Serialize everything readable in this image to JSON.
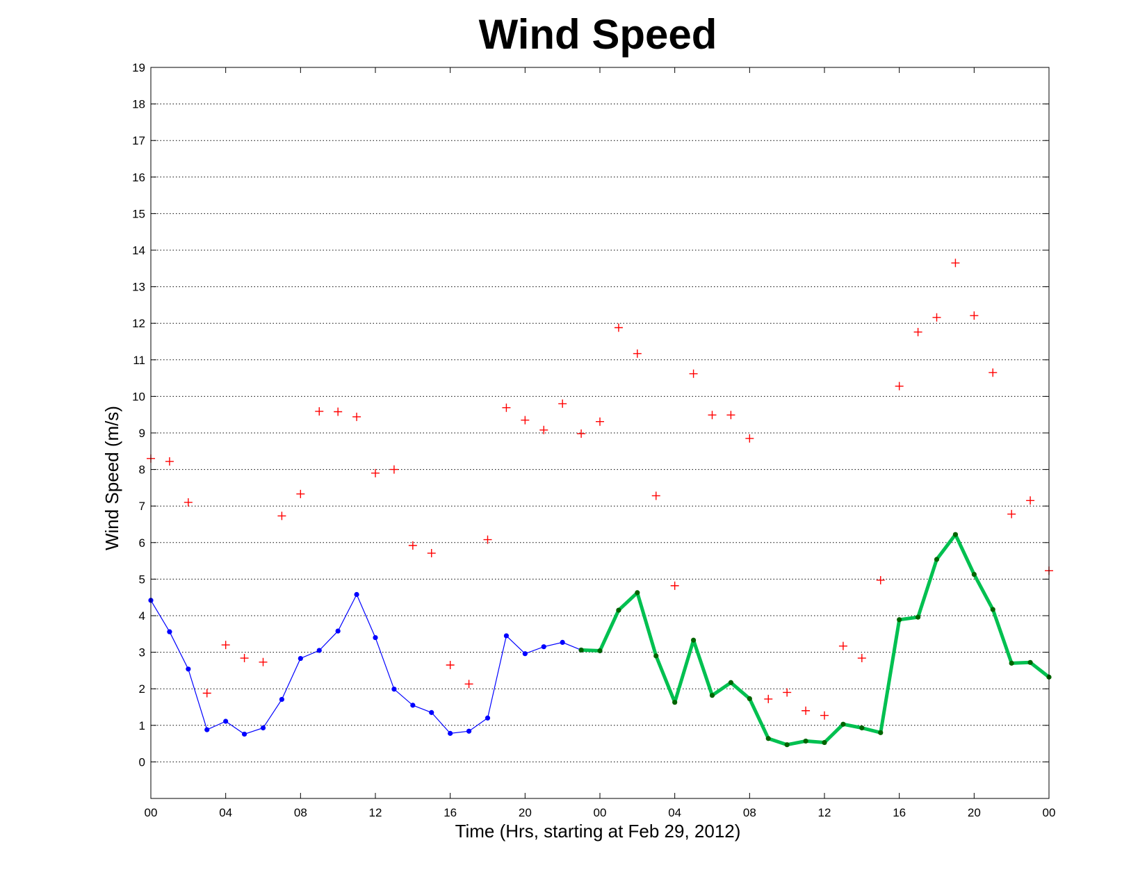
{
  "chart_data": {
    "type": "line",
    "title": "Wind Speed",
    "xlabel": "Time (Hrs, starting at Feb 29, 2012)",
    "ylabel": "Wind Speed (m/s)",
    "x_unit": "hours since Feb 29, 2012 00:00",
    "xlim": [
      0,
      48
    ],
    "ylim": [
      -1,
      19
    ],
    "x_ticks": [
      0,
      4,
      8,
      12,
      16,
      20,
      24,
      28,
      32,
      36,
      40,
      44,
      48
    ],
    "x_tick_labels": [
      "00",
      "04",
      "08",
      "12",
      "16",
      "20",
      "00",
      "04",
      "08",
      "12",
      "16",
      "20",
      "00"
    ],
    "y_ticks": [
      0,
      1,
      2,
      3,
      4,
      5,
      6,
      7,
      8,
      9,
      10,
      11,
      12,
      13,
      14,
      15,
      16,
      17,
      18,
      19
    ],
    "y_tick_labels": [
      "0",
      "1",
      "2",
      "3",
      "4",
      "5",
      "6",
      "7",
      "8",
      "9",
      "10",
      "11",
      "12",
      "13",
      "14",
      "15",
      "16",
      "17",
      "18",
      "19"
    ],
    "grid": "horizontal dotted",
    "series": [
      {
        "style": "thin blue line with dot markers",
        "color": "#0000ff",
        "x": [
          0,
          1,
          2,
          3,
          4,
          5,
          6,
          7,
          8,
          9,
          10,
          11,
          12,
          13,
          14,
          15,
          16,
          17,
          18,
          19,
          20,
          21,
          22,
          23,
          24
        ],
        "values": [
          4.42,
          3.56,
          2.54,
          0.88,
          1.11,
          0.76,
          0.93,
          1.71,
          2.83,
          3.05,
          3.58,
          4.58,
          3.4,
          1.99,
          1.55,
          1.35,
          0.78,
          0.84,
          1.2,
          3.45,
          2.96,
          3.15,
          3.27,
          3.06,
          3.04
        ]
      },
      {
        "style": "thick green line with dark green dot markers",
        "color": "#00c050",
        "marker_color": "#006400",
        "x": [
          23,
          24,
          25,
          26,
          27,
          28,
          29,
          30,
          31,
          32,
          33,
          34,
          35,
          36,
          37,
          38,
          39,
          40,
          41,
          42,
          43,
          44,
          45,
          46,
          47,
          48
        ],
        "values": [
          3.06,
          3.04,
          4.15,
          4.63,
          2.9,
          1.63,
          3.33,
          1.82,
          2.17,
          1.73,
          0.64,
          0.47,
          0.57,
          0.53,
          1.03,
          0.93,
          0.8,
          3.89,
          3.96,
          5.54,
          6.22,
          5.13,
          4.17,
          2.7,
          2.72,
          2.32
        ]
      },
      {
        "style": "red plus markers",
        "color": "#ff0000",
        "x": [
          0,
          1,
          2,
          3,
          4,
          5,
          6,
          7,
          8,
          9,
          10,
          11,
          12,
          13,
          14,
          15,
          16,
          17,
          18,
          19,
          20,
          21,
          22,
          23,
          24,
          25,
          26,
          27,
          28,
          29,
          30,
          31,
          32,
          33,
          34,
          35,
          36,
          37,
          38,
          39,
          40,
          41,
          42,
          43,
          44,
          45,
          46,
          47,
          48
        ],
        "values": [
          8.3,
          8.22,
          7.1,
          1.88,
          3.2,
          2.84,
          2.73,
          6.73,
          7.33,
          9.59,
          9.58,
          9.44,
          7.9,
          8.0,
          5.92,
          5.71,
          2.65,
          2.13,
          6.08,
          9.69,
          9.35,
          9.08,
          9.8,
          8.98,
          9.31,
          11.88,
          11.17,
          7.28,
          4.82,
          10.62,
          9.49,
          9.49,
          8.85,
          1.72,
          1.9,
          1.4,
          1.27,
          3.17,
          2.84,
          4.97,
          10.28,
          11.76,
          12.16,
          13.65,
          12.21,
          10.65,
          6.78,
          7.15,
          5.23
        ]
      }
    ]
  }
}
